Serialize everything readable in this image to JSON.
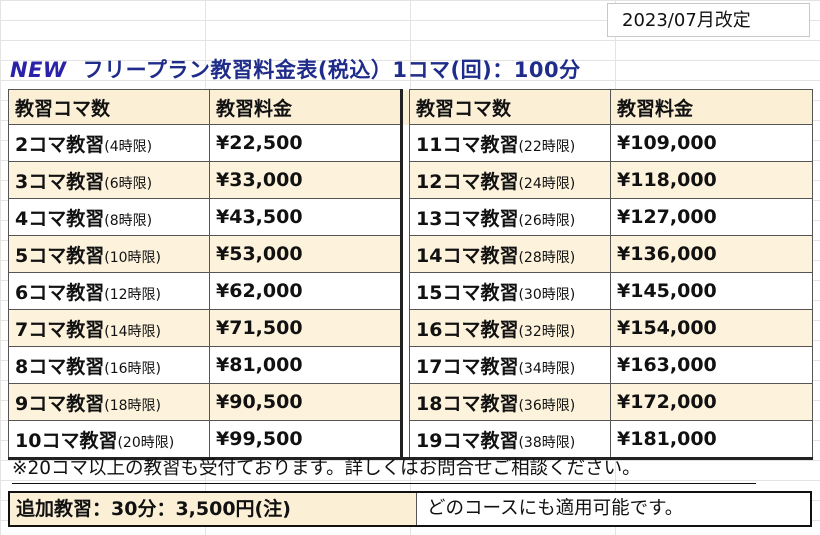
{
  "revision_date": "2023/07月改定",
  "title": {
    "new_tag": "NEW",
    "main": "フリープラン教習料金表(税込）1コマ(回)：100分"
  },
  "table": {
    "headers": [
      "教習コマ数",
      "教習料金",
      "教習コマ数",
      "教習料金"
    ],
    "rows": [
      {
        "left_course": "2コマ教習",
        "left_hours": "(4時限)",
        "left_price": "¥22,500",
        "right_course": "11コマ教習",
        "right_hours": "(22時限)",
        "right_price": "¥109,000"
      },
      {
        "left_course": "3コマ教習",
        "left_hours": "(6時限)",
        "left_price": "¥33,000",
        "right_course": "12コマ教習",
        "right_hours": "(24時限)",
        "right_price": "¥118,000"
      },
      {
        "left_course": "4コマ教習",
        "left_hours": "(8時限)",
        "left_price": "¥43,500",
        "right_course": "13コマ教習",
        "right_hours": "(26時限)",
        "right_price": "¥127,000"
      },
      {
        "left_course": "5コマ教習",
        "left_hours": "(10時限)",
        "left_price": "¥53,000",
        "right_course": "14コマ教習",
        "right_hours": "(28時限)",
        "right_price": "¥136,000"
      },
      {
        "left_course": "6コマ教習",
        "left_hours": "(12時限)",
        "left_price": "¥62,000",
        "right_course": "15コマ教習",
        "right_hours": "(30時限)",
        "right_price": "¥145,000"
      },
      {
        "left_course": "7コマ教習",
        "left_hours": "(14時限)",
        "left_price": "¥71,500",
        "right_course": "16コマ教習",
        "right_hours": "(32時限)",
        "right_price": "¥154,000"
      },
      {
        "left_course": "8コマ教習",
        "left_hours": "(16時限)",
        "left_price": "¥81,000",
        "right_course": "17コマ教習",
        "right_hours": "(34時限)",
        "right_price": "¥163,000"
      },
      {
        "left_course": "9コマ教習",
        "left_hours": "(18時限)",
        "left_price": "¥90,500",
        "right_course": "18コマ教習",
        "right_hours": "(36時限)",
        "right_price": "¥172,000"
      },
      {
        "left_course": "10コマ教習",
        "left_hours": "(20時限)",
        "left_price": "¥99,500",
        "right_course": "19コマ教習",
        "right_hours": "(38時限)",
        "right_price": "¥181,000"
      }
    ]
  },
  "note": "※20コマ以上の教習も受付ております。詳しくはお問合せご相談ください。",
  "additional": {
    "label": "追加教習：30分：3,500円(注)",
    "description": "どのコースにも適用可能です。"
  },
  "colors": {
    "header_fill": "#fbefd6",
    "shaded_row_fill": "#fdf2dc",
    "new_tag": "#2a22a8",
    "title": "#1f2c8a"
  }
}
